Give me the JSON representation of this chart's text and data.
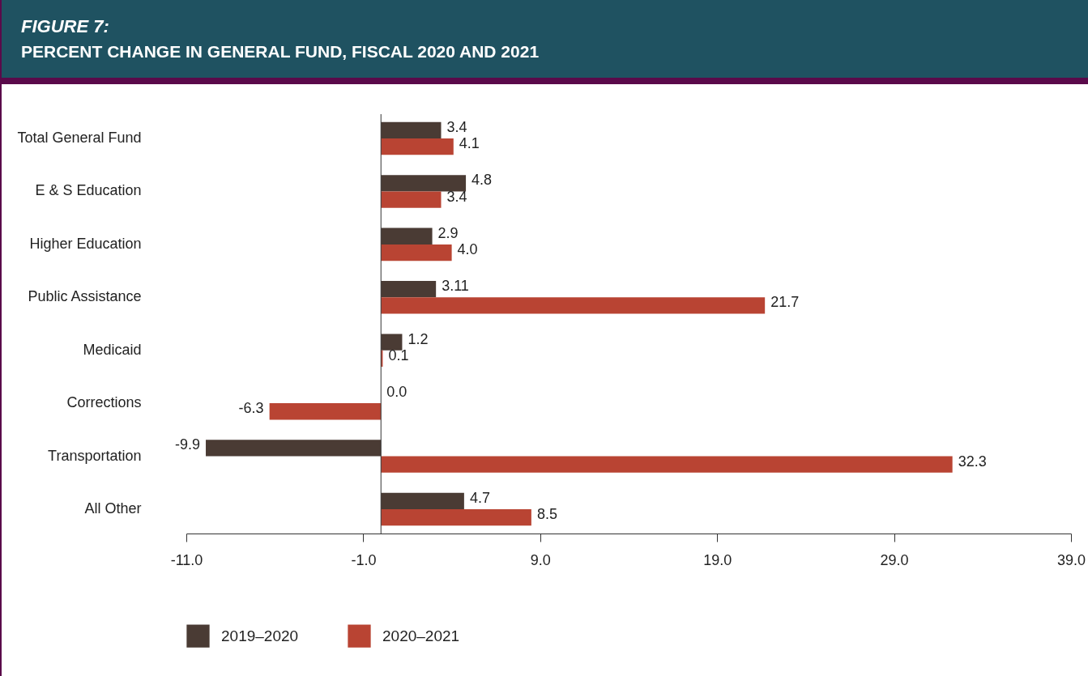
{
  "chart_data": {
    "type": "bar",
    "orientation": "horizontal",
    "title": "FIGURE 7:",
    "subtitle": "PERCENT CHANGE IN GENERAL FUND, FISCAL 2020 AND 2021",
    "categories": [
      "Total General Fund",
      "E & S Education",
      "Higher Education",
      "Public Assistance",
      "Medicaid",
      "Corrections",
      "Transportation",
      "All Other"
    ],
    "series": [
      {
        "name": "2019–2020",
        "color": "#4a3b34",
        "values": [
          3.4,
          4.8,
          2.9,
          3.11,
          1.2,
          0.0,
          -9.9,
          4.7
        ],
        "value_labels": [
          "3.4",
          "4.8",
          "2.9",
          "3.11",
          "1.2",
          "0.0",
          "-9.9",
          "4.7"
        ]
      },
      {
        "name": "2020–2021",
        "color": "#b94433",
        "values": [
          4.1,
          3.4,
          4.0,
          21.7,
          0.1,
          -6.3,
          32.3,
          8.5
        ],
        "value_labels": [
          "4.1",
          "3.4",
          "4.0",
          "21.7",
          "0.1",
          "-6.3",
          "32.3",
          "8.5"
        ]
      }
    ],
    "xlim": [
      -11,
      39
    ],
    "xticks": [
      {
        "value": -11,
        "label": "-11.0"
      },
      {
        "value": -1,
        "label": "-1.0"
      },
      {
        "value": 9,
        "label": "9.0"
      },
      {
        "value": 19,
        "label": "19.0"
      },
      {
        "value": 29,
        "label": "29.0"
      },
      {
        "value": 39,
        "label": "39.0"
      }
    ],
    "grid": false,
    "legend": "bottom"
  }
}
